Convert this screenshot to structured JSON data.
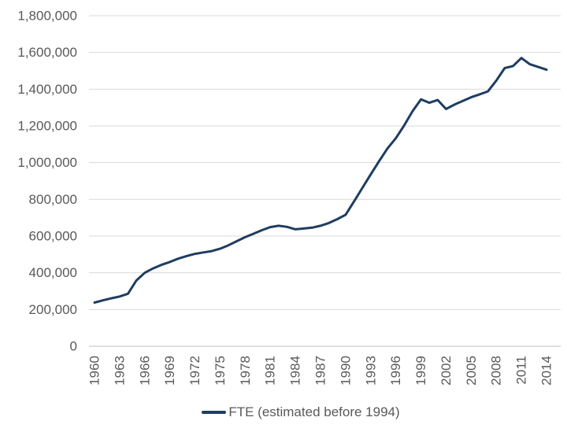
{
  "chart_data": {
    "type": "line",
    "title": "",
    "legend": {
      "label": "FTE (estimated before 1994)",
      "position": "bottom"
    },
    "xlabel": "",
    "ylabel": "",
    "grid": true,
    "ylim": [
      0,
      1800000
    ],
    "ytick_step": 200000,
    "yticks": [
      0,
      200000,
      400000,
      600000,
      800000,
      1000000,
      1200000,
      1400000,
      1600000,
      1800000
    ],
    "ytick_labels": [
      "0",
      "200,000",
      "400,000",
      "600,000",
      "800,000",
      "1,000,000",
      "1,200,000",
      "1,400,000",
      "1,600,000",
      "1,800,000"
    ],
    "xticks": [
      1960,
      1963,
      1966,
      1969,
      1972,
      1975,
      1978,
      1981,
      1984,
      1987,
      1990,
      1993,
      1996,
      1999,
      2002,
      2005,
      2008,
      2011,
      2014
    ],
    "x": [
      1960,
      1961,
      1962,
      1963,
      1964,
      1965,
      1966,
      1967,
      1968,
      1969,
      1970,
      1971,
      1972,
      1973,
      1974,
      1975,
      1976,
      1977,
      1978,
      1979,
      1980,
      1981,
      1982,
      1983,
      1984,
      1985,
      1986,
      1987,
      1988,
      1989,
      1990,
      1991,
      1992,
      1993,
      1994,
      1995,
      1996,
      1997,
      1998,
      1999,
      2000,
      2001,
      2002,
      2003,
      2004,
      2005,
      2006,
      2007,
      2008,
      2009,
      2010,
      2011,
      2012,
      2013,
      2014
    ],
    "series": [
      {
        "name": "FTE (estimated before 1994)",
        "values": [
          238000,
          250000,
          261000,
          271000,
          286000,
          358000,
          400000,
          424000,
          443000,
          459000,
          477000,
          491000,
          503000,
          511000,
          518000,
          531000,
          550000,
          572000,
          594000,
          613000,
          632000,
          649000,
          656000,
          650000,
          637000,
          641000,
          646000,
          656000,
          671000,
          692000,
          716000,
          788000,
          862000,
          936000,
          1008000,
          1077000,
          1133000,
          1203000,
          1280000,
          1345000,
          1326000,
          1341000,
          1292000,
          1316000,
          1336000,
          1356000,
          1372000,
          1388000,
          1447000,
          1515000,
          1526000,
          1570000,
          1536000,
          1521000,
          1506000
        ]
      }
    ],
    "colors": {
      "line": "#1f3d61",
      "gridline": "#d9d9d9",
      "axis_line": "#bfbfbf",
      "tick_label": "#595959",
      "background": "#ffffff"
    }
  }
}
